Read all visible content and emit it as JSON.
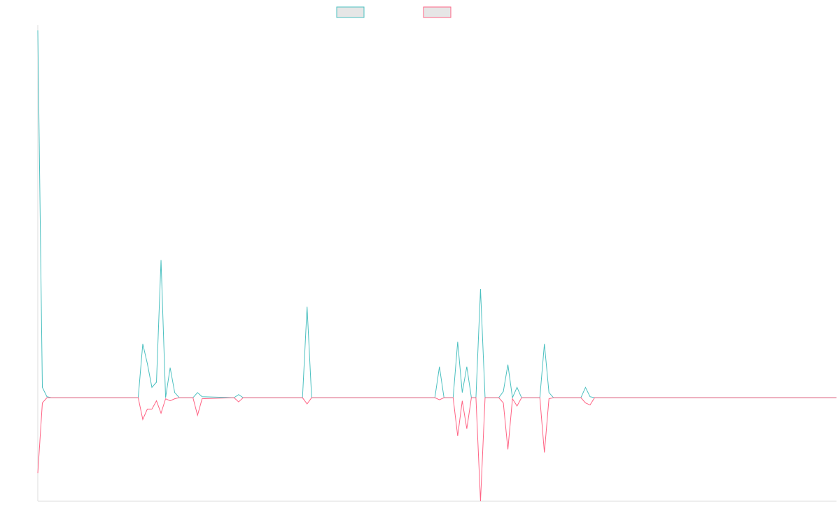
{
  "chart_data": {
    "type": "line",
    "title": "",
    "xlabel": "",
    "ylabel": "",
    "grid": false,
    "legend_position": "top-center",
    "y_range": [
      -100,
      360
    ],
    "x_range": [
      0,
      175
    ],
    "x_ticks_shown": false,
    "y_ticks_shown": false,
    "colors": {
      "series_1": "#4bc0c0",
      "series_2": "#ff6384",
      "axis": "#dddddd",
      "legend_fill": "#e6e6e6"
    },
    "series": [
      {
        "color": "#4bc0c0",
        "points": [
          [
            0,
            355
          ],
          [
            1,
            10
          ],
          [
            2,
            1
          ],
          [
            3,
            0
          ],
          [
            22,
            0
          ],
          [
            23,
            52
          ],
          [
            24,
            33
          ],
          [
            25,
            10
          ],
          [
            26,
            15
          ],
          [
            27,
            133
          ],
          [
            28,
            0
          ],
          [
            29,
            29
          ],
          [
            30,
            5
          ],
          [
            31,
            0
          ],
          [
            34,
            0
          ],
          [
            35,
            5
          ],
          [
            36,
            1
          ],
          [
            43,
            0
          ],
          [
            44,
            3
          ],
          [
            45,
            0
          ],
          [
            58,
            0
          ],
          [
            59,
            88
          ],
          [
            60,
            0
          ],
          [
            87,
            0
          ],
          [
            88,
            30
          ],
          [
            89,
            0
          ],
          [
            91,
            0
          ],
          [
            92,
            54
          ],
          [
            93,
            5
          ],
          [
            94,
            30
          ],
          [
            95,
            0
          ],
          [
            96,
            0
          ],
          [
            97,
            105
          ],
          [
            98,
            0
          ],
          [
            101,
            0
          ],
          [
            102,
            6
          ],
          [
            103,
            32
          ],
          [
            104,
            0
          ],
          [
            105,
            10
          ],
          [
            106,
            0
          ],
          [
            110,
            0
          ],
          [
            111,
            52
          ],
          [
            112,
            5
          ],
          [
            113,
            0
          ],
          [
            119,
            0
          ],
          [
            120,
            10
          ],
          [
            121,
            1
          ],
          [
            122,
            0
          ],
          [
            175,
            0
          ]
        ]
      },
      {
        "color": "#ff6384",
        "points": [
          [
            0,
            -73
          ],
          [
            1,
            -5
          ],
          [
            2,
            0
          ],
          [
            3,
            0
          ],
          [
            22,
            0
          ],
          [
            23,
            -21
          ],
          [
            24,
            -11
          ],
          [
            25,
            -11
          ],
          [
            26,
            -3
          ],
          [
            27,
            -15
          ],
          [
            28,
            -1
          ],
          [
            29,
            -3
          ],
          [
            30,
            -1
          ],
          [
            31,
            0
          ],
          [
            34,
            0
          ],
          [
            35,
            -17
          ],
          [
            36,
            -1
          ],
          [
            43,
            0
          ],
          [
            44,
            -4
          ],
          [
            45,
            0
          ],
          [
            58,
            0
          ],
          [
            59,
            -6
          ],
          [
            60,
            0
          ],
          [
            87,
            0
          ],
          [
            88,
            -2
          ],
          [
            89,
            0
          ],
          [
            91,
            0
          ],
          [
            92,
            -37
          ],
          [
            93,
            -3
          ],
          [
            94,
            -30
          ],
          [
            95,
            0
          ],
          [
            96,
            0
          ],
          [
            97,
            -100
          ],
          [
            98,
            0
          ],
          [
            101,
            0
          ],
          [
            102,
            -5
          ],
          [
            103,
            -50
          ],
          [
            104,
            -1
          ],
          [
            105,
            -8
          ],
          [
            106,
            0
          ],
          [
            110,
            0
          ],
          [
            111,
            -53
          ],
          [
            112,
            -1
          ],
          [
            113,
            0
          ],
          [
            119,
            0
          ],
          [
            120,
            -5
          ],
          [
            121,
            -7
          ],
          [
            122,
            0
          ],
          [
            175,
            0
          ]
        ]
      }
    ]
  }
}
